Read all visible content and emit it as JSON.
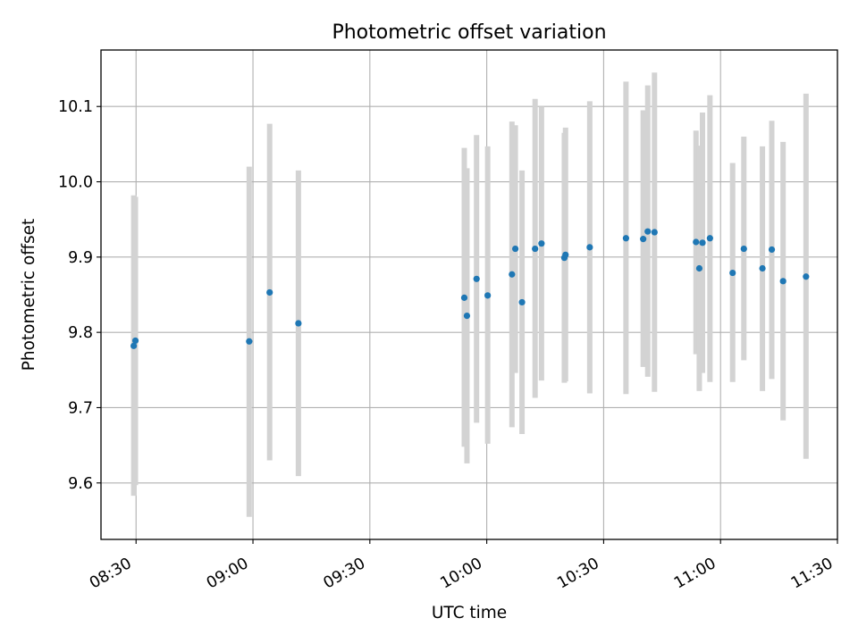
{
  "chart_data": {
    "type": "scatter",
    "title": "Photometric offset variation",
    "xlabel": "UTC time",
    "ylabel": "Photometric offset",
    "x_unit": "time of day (UTC)",
    "xlim": [
      "08:21",
      "11:30"
    ],
    "ylim": [
      9.525,
      10.175
    ],
    "x_ticks": [
      "08:30",
      "09:00",
      "09:30",
      "10:00",
      "10:30",
      "11:00",
      "11:30"
    ],
    "y_ticks": [
      "9.6",
      "9.7",
      "9.8",
      "9.9",
      "10.0",
      "10.1"
    ],
    "grid": true,
    "colors": {
      "points": "#1f77b4",
      "errorbars": "#d3d3d3"
    },
    "series": [
      {
        "points": [
          {
            "x": "08:29:24",
            "y": 9.782,
            "ylow": 9.583,
            "yhigh": 9.982
          },
          {
            "x": "08:29:50",
            "y": 9.789,
            "ylow": 9.597,
            "yhigh": 9.98
          },
          {
            "x": "08:59:02",
            "y": 9.788,
            "ylow": 9.555,
            "yhigh": 10.02
          },
          {
            "x": "09:04:17",
            "y": 9.853,
            "ylow": 9.63,
            "yhigh": 10.077
          },
          {
            "x": "09:11:40",
            "y": 9.812,
            "ylow": 9.609,
            "yhigh": 10.015
          },
          {
            "x": "09:54:14",
            "y": 9.846,
            "ylow": 9.648,
            "yhigh": 10.045
          },
          {
            "x": "09:54:55",
            "y": 9.822,
            "ylow": 9.626,
            "yhigh": 10.018
          },
          {
            "x": "09:57:23",
            "y": 9.871,
            "ylow": 9.68,
            "yhigh": 10.062
          },
          {
            "x": "10:00:14",
            "y": 9.849,
            "ylow": 9.652,
            "yhigh": 10.047
          },
          {
            "x": "10:06:28",
            "y": 9.877,
            "ylow": 9.674,
            "yhigh": 10.08
          },
          {
            "x": "10:07:20",
            "y": 9.911,
            "ylow": 9.746,
            "yhigh": 10.075
          },
          {
            "x": "10:09:03",
            "y": 9.84,
            "ylow": 9.665,
            "yhigh": 10.015
          },
          {
            "x": "10:12:24",
            "y": 9.911,
            "ylow": 9.713,
            "yhigh": 10.11
          },
          {
            "x": "10:14:03",
            "y": 9.918,
            "ylow": 9.736,
            "yhigh": 10.1
          },
          {
            "x": "10:19:55",
            "y": 9.899,
            "ylow": 9.733,
            "yhigh": 10.065
          },
          {
            "x": "10:20:13",
            "y": 9.903,
            "ylow": 9.735,
            "yhigh": 10.072
          },
          {
            "x": "10:26:26",
            "y": 9.913,
            "ylow": 9.719,
            "yhigh": 10.107
          },
          {
            "x": "10:35:44",
            "y": 9.925,
            "ylow": 9.718,
            "yhigh": 10.133
          },
          {
            "x": "10:40:09",
            "y": 9.924,
            "ylow": 9.754,
            "yhigh": 10.095
          },
          {
            "x": "10:41:19",
            "y": 9.934,
            "ylow": 9.741,
            "yhigh": 10.128
          },
          {
            "x": "10:43:03",
            "y": 9.933,
            "ylow": 9.721,
            "yhigh": 10.145
          },
          {
            "x": "10:53:42",
            "y": 9.92,
            "ylow": 9.771,
            "yhigh": 10.068
          },
          {
            "x": "10:54:33",
            "y": 9.885,
            "ylow": 9.722,
            "yhigh": 10.048
          },
          {
            "x": "10:55:22",
            "y": 9.919,
            "ylow": 9.746,
            "yhigh": 10.092
          },
          {
            "x": "10:57:17",
            "y": 9.925,
            "ylow": 9.734,
            "yhigh": 10.115
          },
          {
            "x": "11:03:06",
            "y": 9.879,
            "ylow": 9.734,
            "yhigh": 10.025
          },
          {
            "x": "11:05:59",
            "y": 9.911,
            "ylow": 9.763,
            "yhigh": 10.06
          },
          {
            "x": "11:10:45",
            "y": 9.885,
            "ylow": 9.722,
            "yhigh": 10.047
          },
          {
            "x": "11:13:09",
            "y": 9.91,
            "ylow": 9.738,
            "yhigh": 10.081
          },
          {
            "x": "11:16:03",
            "y": 9.868,
            "ylow": 9.683,
            "yhigh": 10.053
          },
          {
            "x": "11:21:56",
            "y": 9.874,
            "ylow": 9.632,
            "yhigh": 10.117
          }
        ]
      }
    ]
  }
}
